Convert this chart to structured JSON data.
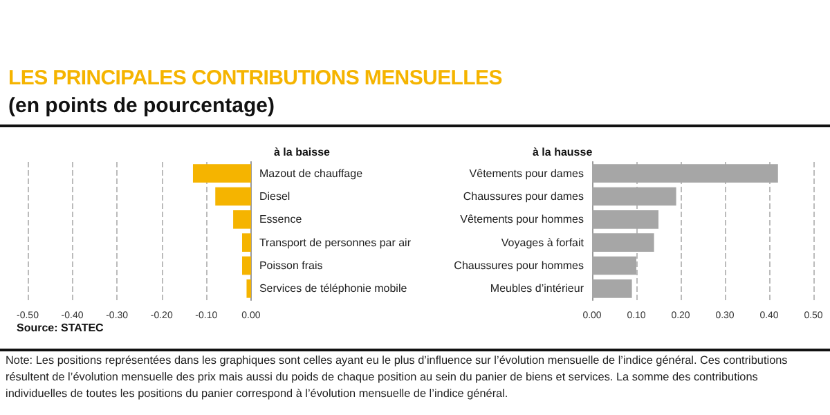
{
  "chart_data": [
    {
      "type": "other",
      "title": "LES PRINCIPALES CONTRIBUTIONS MENSUELLES",
      "subtitle": "(en points de pourcentage)",
      "annotations": [
        "Note: Les positions représentées dans les graphiques sont celles ayant eu le plus d’influence sur l’évolution mensuelle de l’indice général. Ces contributions résultent de l’évolution mensuelle des prix mais aussi du poids de chaque position au sein du panier de biens et services. La somme des contributions individuelles de toutes les positions du panier correspond à l’évolution mensuelle de l’indice général."
      ]
    },
    {
      "type": "bar",
      "orientation": "horizontal",
      "title": "à la baisse",
      "categories": [
        "Mazout de chauffage",
        "Diesel",
        "Essence",
        "Transport de personnes par air",
        "Poisson frais",
        "Services de téléphonie mobile"
      ],
      "values": [
        -0.13,
        -0.08,
        -0.04,
        -0.02,
        -0.02,
        -0.01
      ],
      "color": "#f5b400",
      "xlim": [
        -0.5,
        0
      ],
      "xticks": [
        {
          "value": -0.5,
          "label": "-0.50"
        },
        {
          "value": -0.4,
          "label": "-0.40"
        },
        {
          "value": -0.3,
          "label": "-0.30"
        },
        {
          "value": -0.2,
          "label": "-0.20"
        },
        {
          "value": -0.1,
          "label": "-0.10"
        },
        {
          "value": 0,
          "label": "0.00"
        }
      ],
      "grid": "x",
      "annotations": [
        "Source: STATEC"
      ]
    },
    {
      "type": "bar",
      "orientation": "horizontal",
      "title": "à la hausse",
      "categories": [
        "Vêtements pour dames",
        "Chaussures pour dames",
        "Vêtements pour hommes",
        "Voyages à forfait",
        "Chaussures pour hommes",
        "Meubles d’intérieur"
      ],
      "values": [
        0.42,
        0.19,
        0.15,
        0.14,
        0.1,
        0.09
      ],
      "color": "#a6a6a6",
      "xlim": [
        0,
        0.5
      ],
      "xticks": [
        {
          "value": 0,
          "label": "0.00"
        },
        {
          "value": 0.1,
          "label": "0.10"
        },
        {
          "value": 0.2,
          "label": "0.20"
        },
        {
          "value": 0.3,
          "label": "0.30"
        },
        {
          "value": 0.4,
          "label": "0.40"
        },
        {
          "value": 0.5,
          "label": "0.50"
        }
      ],
      "grid": "x"
    }
  ]
}
